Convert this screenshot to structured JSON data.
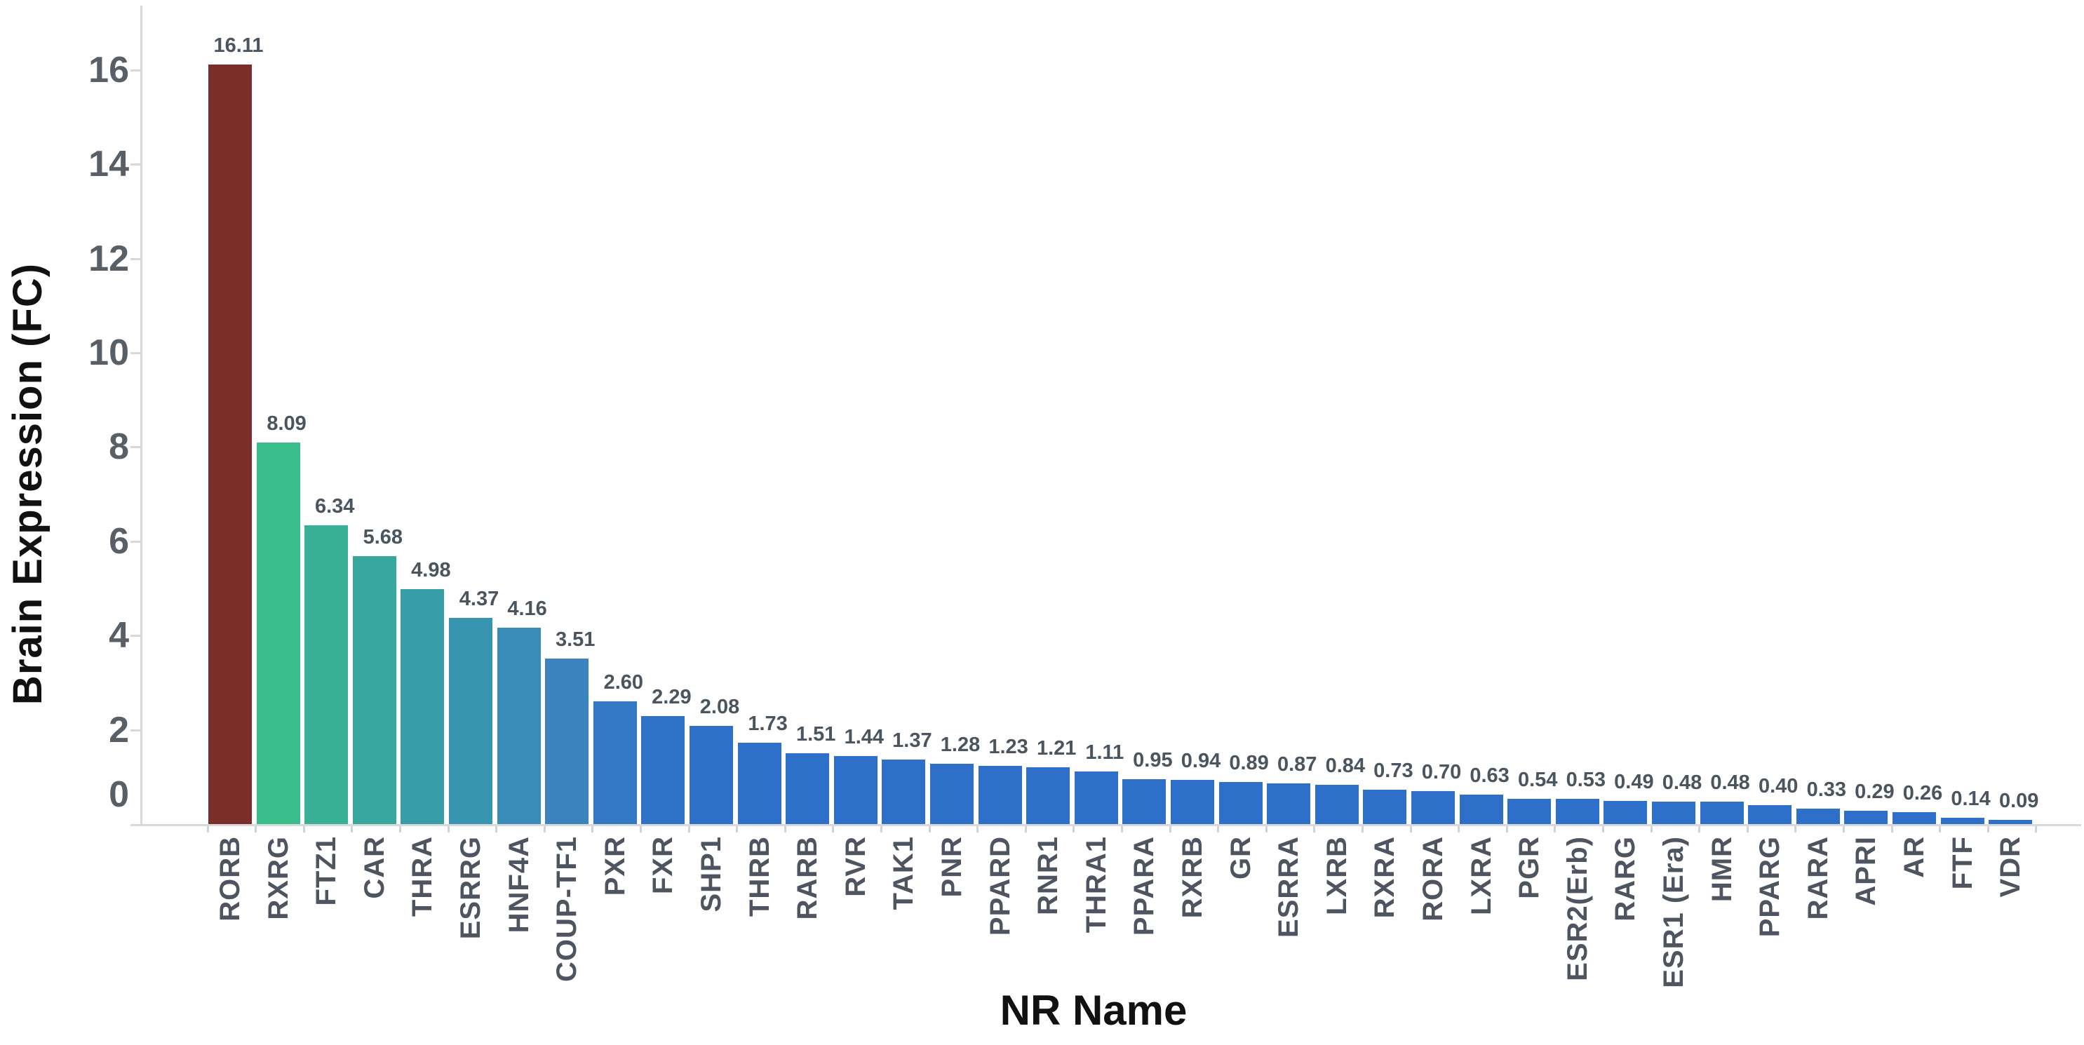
{
  "chart_data": {
    "type": "bar",
    "title": "",
    "xlabel": "NR Name",
    "ylabel": "Brain Expression (FC)",
    "categories": [
      "RORB",
      "RXRG",
      "FTZ1",
      "CAR",
      "THRA",
      "ESRRG",
      "HNF4A",
      "COUP-TF1",
      "PXR",
      "FXR",
      "SHP1",
      "THRB",
      "RARB",
      "RVR",
      "TAK1",
      "PNR",
      "PPARD",
      "RNR1",
      "THRA1",
      "PPARA",
      "RXRB",
      "GR",
      "ESRRA",
      "LXRB",
      "RXRA",
      "RORA",
      "LXRA",
      "PGR",
      "ESR2(Erb)",
      "RARG",
      "ESR1 (Era)",
      "HMR",
      "PPARG",
      "RARA",
      "APRI",
      "AR",
      "FTF",
      "VDR"
    ],
    "values": [
      16.11,
      8.09,
      6.34,
      5.68,
      4.98,
      4.37,
      4.16,
      3.51,
      2.6,
      2.29,
      2.08,
      1.73,
      1.51,
      1.44,
      1.37,
      1.28,
      1.23,
      1.21,
      1.11,
      0.95,
      0.94,
      0.89,
      0.87,
      0.84,
      0.73,
      0.7,
      0.63,
      0.54,
      0.53,
      0.49,
      0.48,
      0.48,
      0.4,
      0.33,
      0.29,
      0.26,
      0.14,
      0.09
    ],
    "bar_colors": [
      "#7B2E27",
      "#3ABD8C",
      "#37B095",
      "#36A89E",
      "#379EA7",
      "#3795AF",
      "#388CB7",
      "#3A83BE",
      "#3378C5",
      "#2F72C8",
      "#2D6FC9",
      "#2D6FC9",
      "#2D6FC9",
      "#2D6FC9",
      "#2D6FC9",
      "#2D6FC9",
      "#2D6FC9",
      "#2D6FC9",
      "#2D6FC9",
      "#2D6FC9",
      "#2D6FC9",
      "#2D6FC9",
      "#2D6FC9",
      "#2D6FC9",
      "#2D6FC9",
      "#2D6FC9",
      "#2D6FC9",
      "#2D6FC9",
      "#2D6FC9",
      "#2D6FC9",
      "#2D6FC9",
      "#2D6FC9",
      "#2D6FC9",
      "#2D6FC9",
      "#2D6FC9",
      "#2D6FC9",
      "#2D6FC9",
      "#2D6FC9"
    ],
    "yticks": [
      0,
      2,
      4,
      6,
      8,
      10,
      12,
      14,
      16
    ],
    "ylim": [
      0,
      17.2
    ],
    "grid": "off",
    "legend": "none",
    "value_labels_shown": true,
    "value_label_decimals": 2,
    "colors": {
      "axis_line": "#d9d9d9",
      "category_tick": "#ccd3dc",
      "ytick_text": "#595f66",
      "xtick_text": "#4f5560",
      "value_text": "#4a5560",
      "title_text": "#111111",
      "background": "#ffffff"
    }
  }
}
